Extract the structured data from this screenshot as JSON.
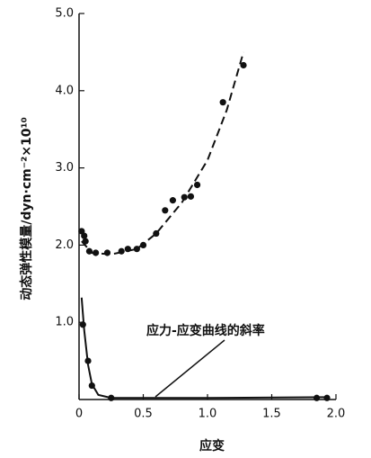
{
  "chart_data": {
    "type": "scatter",
    "xlabel": "应变",
    "ylabel": "动态弹性模量/dyn·cm⁻²×10¹⁰",
    "annotation": "应力-应变曲线的斜率",
    "xlim": [
      0,
      2.0
    ],
    "ylim": [
      0,
      5.0
    ],
    "xticks": [
      0,
      0.5,
      {
        "value": 1,
        "label": "1.0"
      },
      1.5,
      {
        "value": 2,
        "label": "2.0"
      }
    ],
    "yticks": [
      {
        "value": 1,
        "label": "1.0"
      },
      {
        "value": 2,
        "label": "2.0"
      },
      {
        "value": 3,
        "label": "3.0"
      },
      {
        "value": 4,
        "label": "4.0"
      },
      {
        "value": 5,
        "label": "5.0"
      }
    ],
    "series": [
      {
        "mode": "markers",
        "color": "#111",
        "x": [
          0.02,
          0.04,
          0.05,
          0.08,
          0.13,
          0.22,
          0.33,
          0.38,
          0.45,
          0.5,
          0.6,
          0.67,
          0.73,
          0.82,
          0.87,
          0.92,
          1.12,
          1.28
        ],
        "values": [
          2.18,
          2.12,
          2.05,
          1.92,
          1.9,
          1.9,
          1.92,
          1.95,
          1.95,
          2.0,
          2.15,
          2.45,
          2.58,
          2.62,
          2.63,
          2.78,
          3.85,
          4.33
        ]
      },
      {
        "mode": "dashed",
        "color": "#111",
        "x": [
          0.02,
          0.1,
          0.25,
          0.45,
          0.6,
          0.8,
          1.0,
          1.15,
          1.28
        ],
        "values": [
          2.05,
          1.9,
          1.88,
          1.95,
          2.15,
          2.55,
          3.1,
          3.75,
          4.5
        ]
      },
      {
        "mode": "markers",
        "color": "#111",
        "x": [
          0.03,
          0.07,
          0.1,
          0.25,
          1.85,
          1.93
        ],
        "values": [
          0.97,
          0.5,
          0.18,
          0.02,
          0.02,
          0.02
        ]
      },
      {
        "mode": "solid",
        "color": "#111",
        "x": [
          0.02,
          0.04,
          0.07,
          0.1,
          0.15,
          0.25,
          1.0,
          1.95
        ],
        "values": [
          1.32,
          0.9,
          0.45,
          0.2,
          0.06,
          0.02,
          0.02,
          0.03
        ]
      }
    ]
  }
}
